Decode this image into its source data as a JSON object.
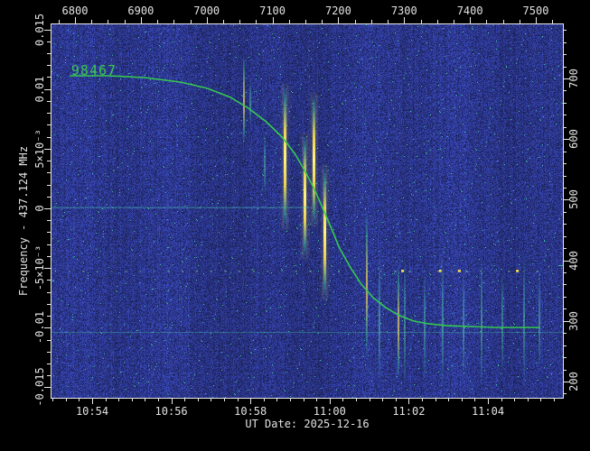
{
  "footer": {
    "label": "UT Date: 2025-12-16"
  },
  "chart_data": {
    "type": "heatmap",
    "description": "RF waterfall spectrogram with fitted satellite Doppler curve",
    "satellite_label": "98467",
    "center_frequency_mhz": 437.124,
    "axes": {
      "top": {
        "ticks": [
          6800,
          6900,
          7000,
          7100,
          7200,
          7300,
          7400,
          7500
        ],
        "minor_step": 25,
        "range": [
          6763,
          7541
        ]
      },
      "bottom": {
        "ticks": [
          "10:54",
          "10:56",
          "10:58",
          "11:00",
          "11:02",
          "11:04"
        ],
        "range": [
          "10:52:57",
          "11:05:54"
        ]
      },
      "left": {
        "title": "Frequency - 437.124 MHz",
        "ticks": [
          {
            "label": "0.015",
            "value": 0.015
          },
          {
            "label": "0.01",
            "value": 0.01
          },
          {
            "label": "5×10⁻³",
            "value": 0.005
          },
          {
            "label": "0",
            "value": 0
          },
          {
            "label": "-5×10⁻³",
            "value": -0.005
          },
          {
            "label": "-0.01",
            "value": -0.01
          },
          {
            "label": "-0.015",
            "value": -0.015
          }
        ],
        "minor_step": 0.001,
        "range": [
          -0.0159,
          0.0155
        ]
      },
      "right": {
        "ticks": [
          700,
          600,
          500,
          400,
          300,
          200
        ],
        "minor_step": 20,
        "range": [
          173,
          790
        ]
      }
    },
    "doppler_curve": {
      "series_label": "98467",
      "color": "#35c94f",
      "points": [
        {
          "t": "10:53:27",
          "df": 0.01111
        },
        {
          "t": "10:54:25",
          "df": 0.01111
        },
        {
          "t": "10:55:19",
          "df": 0.01096
        },
        {
          "t": "10:56:14",
          "df": 0.01058
        },
        {
          "t": "10:56:55",
          "df": 0.01005
        },
        {
          "t": "10:57:30",
          "df": 0.0093
        },
        {
          "t": "10:57:57",
          "df": 0.00839
        },
        {
          "t": "10:58:24",
          "df": 0.00726
        },
        {
          "t": "10:58:48",
          "df": 0.00597
        },
        {
          "t": "10:59:07",
          "df": 0.00461
        },
        {
          "t": "10:59:23",
          "df": 0.0031
        },
        {
          "t": "10:59:37",
          "df": 0.00159
        },
        {
          "t": "10:59:49",
          "df": 8e-05
        },
        {
          "t": "11:00:02",
          "df": -0.00159
        },
        {
          "t": "11:00:15",
          "df": -0.00333
        },
        {
          "t": "11:00:32",
          "df": -0.00499
        },
        {
          "t": "11:00:48",
          "df": -0.00635
        },
        {
          "t": "11:01:06",
          "df": -0.00748
        },
        {
          "t": "11:01:25",
          "df": -0.00831
        },
        {
          "t": "11:01:46",
          "df": -0.00899
        },
        {
          "t": "11:02:08",
          "df": -0.00945
        },
        {
          "t": "11:02:31",
          "df": -0.00968
        },
        {
          "t": "11:02:58",
          "df": -0.00983
        },
        {
          "t": "11:03:33",
          "df": -0.0099
        },
        {
          "t": "11:04:14",
          "df": -0.00998
        },
        {
          "t": "11:05:18",
          "df": -0.00998
        }
      ]
    },
    "signal_bursts": [
      {
        "t": "10:57:50",
        "df_hi": 0.0128,
        "df_lo": 0.0054,
        "level": "medium"
      },
      {
        "t": "10:58:00",
        "df_hi": 0.0107,
        "df_lo": 0.0069,
        "level": "faint"
      },
      {
        "t": "10:58:22",
        "df_hi": 0.0063,
        "df_lo": 0.0012,
        "level": "faint"
      },
      {
        "t": "10:58:53",
        "df_hi": 0.0103,
        "df_lo": -0.0016,
        "level": "bright"
      },
      {
        "t": "10:59:23",
        "df_hi": 0.0061,
        "df_lo": -0.0041,
        "level": "bright"
      },
      {
        "t": "10:59:36",
        "df_hi": 0.0095,
        "df_lo": -0.0014,
        "level": "bright"
      },
      {
        "t": "10:59:52",
        "df_hi": 0.0035,
        "df_lo": -0.0075,
        "level": "bright"
      },
      {
        "t": "11:00:56",
        "df_hi": -0.0003,
        "df_lo": -0.0124,
        "level": "medium"
      },
      {
        "t": "11:01:16",
        "df_hi": -0.0037,
        "df_lo": -0.015,
        "level": "faint"
      },
      {
        "t": "11:01:44",
        "df_hi": -0.0048,
        "df_lo": -0.0143,
        "level": "medium"
      },
      {
        "t": "11:01:54",
        "df_hi": -0.0041,
        "df_lo": -0.015,
        "level": "faint"
      },
      {
        "t": "11:02:24",
        "df_hi": -0.0052,
        "df_lo": -0.0143,
        "level": "faint"
      },
      {
        "t": "11:02:51",
        "df_hi": -0.0037,
        "df_lo": -0.015,
        "level": "faint"
      },
      {
        "t": "11:03:23",
        "df_hi": -0.0052,
        "df_lo": -0.0143,
        "level": "faint"
      },
      {
        "t": "11:03:50",
        "df_hi": -0.0041,
        "df_lo": -0.015,
        "level": "faint"
      },
      {
        "t": "11:04:22",
        "df_hi": -0.0052,
        "df_lo": -0.0139,
        "level": "faint"
      },
      {
        "t": "11:04:55",
        "df_hi": -0.0037,
        "df_lo": -0.015,
        "level": "faint"
      },
      {
        "t": "11:05:18",
        "df_hi": -0.0052,
        "df_lo": -0.0135,
        "level": "faint"
      }
    ],
    "interference_lines": [
      {
        "df": 0.0001,
        "t1": null,
        "t2": "10:59:29",
        "alpha": 0.5
      },
      {
        "df": -0.01036,
        "t1": null,
        "t2": null,
        "alpha": 0.35
      },
      {
        "df": -0.00476,
        "t1": "11:05:47",
        "t2": null,
        "alpha": 0.8
      }
    ],
    "dot_row": {
      "df": -0.00522,
      "bright_t": [
        "11:01:50",
        "11:02:47",
        "11:03:16",
        "11:04:44"
      ]
    },
    "colors": {
      "plot_background": "#2c3a90",
      "axis": "#e8e8e8",
      "curve": "#35c94f",
      "burst_core": "#ffe44d",
      "burst_fringe": "#39b795",
      "dots": "#7fd488"
    }
  }
}
